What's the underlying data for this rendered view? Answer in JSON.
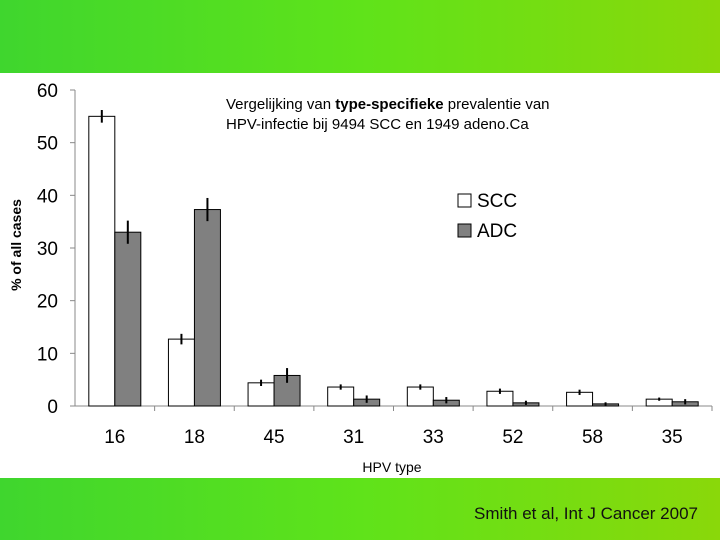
{
  "citation": "Smith et al, Int J Cancer 2007",
  "chart_data": {
    "type": "bar",
    "title_line1_pre": "Vergelijking van ",
    "title_line1_bold": "type-specifieke",
    "title_line1_post": " prevalentie van",
    "title_line2": "HPV-infectie bij 9494 SCC en 1949 adeno.Ca",
    "xlabel": "HPV type",
    "ylabel": "% of all cases",
    "ylim": [
      0,
      60
    ],
    "yticks": [
      "0",
      "10",
      "20",
      "30",
      "40",
      "50",
      "60"
    ],
    "categories": [
      "16",
      "18",
      "45",
      "31",
      "33",
      "52",
      "58",
      "35"
    ],
    "series": [
      {
        "name": "SCC",
        "color": "#ffffff",
        "values": [
          55,
          12.7,
          4.4,
          3.6,
          3.6,
          2.8,
          2.6,
          1.3
        ],
        "errors": [
          1.2,
          1.0,
          0.6,
          0.5,
          0.5,
          0.5,
          0.5,
          0.3
        ]
      },
      {
        "name": "ADC",
        "color": "#808080",
        "values": [
          33,
          37.3,
          5.8,
          1.3,
          1.1,
          0.6,
          0.4,
          0.8
        ],
        "errors": [
          2.2,
          2.2,
          1.4,
          0.7,
          0.6,
          0.4,
          0.3,
          0.5
        ]
      }
    ],
    "legend_position": "top-right",
    "grid": false
  }
}
